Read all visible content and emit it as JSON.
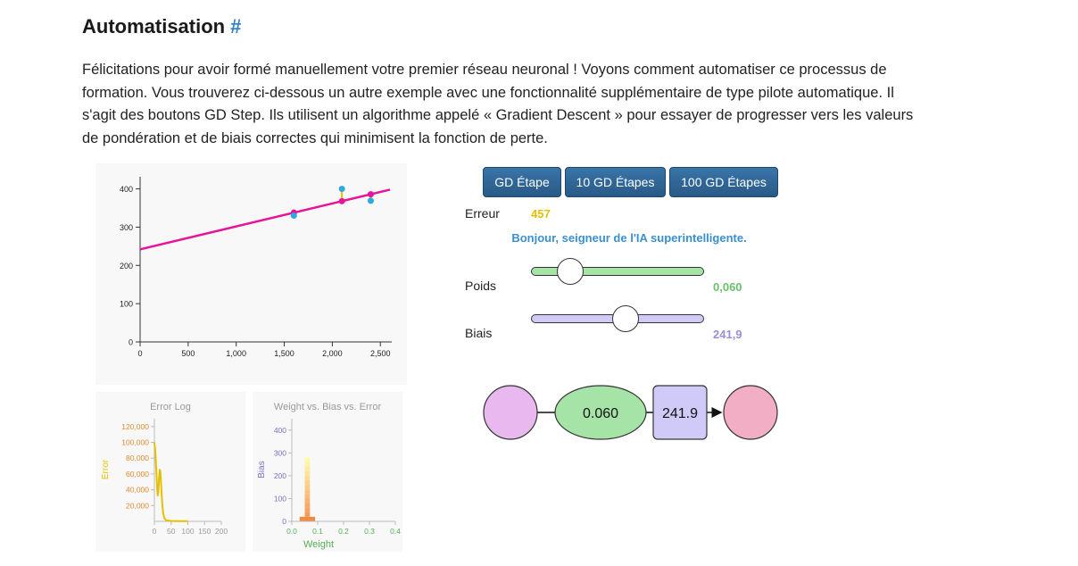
{
  "heading": {
    "title": "Automatisation",
    "anchor": "#"
  },
  "intro": "Félicitations pour avoir formé manuellement votre premier réseau neuronal ! Voyons comment automatiser ce processus de formation. Vous trouverez ci-dessous un autre exemple avec une fonctionnalité supplémentaire de type pilote automatique. Il s'agit des boutons GD Step. Ils utilisent un algorithme appelé « Gradient Descent » pour essayer de progresser vers les valeurs de pondération et de biais correctes qui minimisent la fonction de perte.",
  "controls": {
    "buttons": [
      "GD Étape",
      "10 GD Étapes",
      "100 GD Étapes"
    ],
    "error_label": "Erreur",
    "error_value": "457",
    "message": "Bonjour, seigneur de l'IA superintelligente.",
    "weight_label": "Poids",
    "weight_value": "0,060",
    "weight_slider_fraction": 0.2,
    "bias_label": "Biais",
    "bias_value": "241,9",
    "bias_slider_fraction": 0.52
  },
  "network": {
    "weight_node": "0.060",
    "bias_node": "241.9"
  },
  "colors": {
    "weight": "#a6e3a6",
    "bias": "#cfcaf7",
    "input": "#e8b8ef",
    "output": "#f2aec4",
    "line": "#e6149a",
    "point": "#2fa8e0",
    "error": "#e6c000",
    "button": "#2b5f8e"
  },
  "chart_data": [
    {
      "type": "scatter",
      "x": [
        1600,
        2100,
        2400
      ],
      "y": [
        330,
        400,
        369
      ],
      "fit_line": {
        "weight": 0.06,
        "bias": 241.9
      },
      "xlim": [
        0,
        2600
      ],
      "ylim": [
        0,
        420
      ],
      "x_ticks": [
        "0",
        "500",
        "1,000",
        "1,500",
        "2,000",
        "2,500"
      ],
      "y_ticks": [
        "0",
        "100",
        "200",
        "300",
        "400"
      ]
    },
    {
      "type": "line",
      "title": "Error Log",
      "ylabel": "Error",
      "x": [
        0,
        2,
        4,
        6,
        8,
        10,
        12,
        14,
        16,
        18,
        20,
        22,
        24,
        26,
        28,
        30,
        35,
        40,
        50,
        60,
        80,
        100
      ],
      "values": [
        100000,
        92000,
        80000,
        62000,
        45000,
        32000,
        38000,
        55000,
        66000,
        62000,
        48000,
        32000,
        20000,
        12000,
        7000,
        4000,
        1500,
        800,
        500,
        400,
        300,
        300
      ],
      "xlim": [
        0,
        200
      ],
      "ylim": [
        0,
        130000
      ],
      "x_ticks": [
        "0",
        "50",
        "100",
        "150",
        "200"
      ],
      "y_ticks": [
        "20,000",
        "40,000",
        "60,000",
        "80,000",
        "100,000",
        "120,000"
      ]
    },
    {
      "type": "heatmap",
      "title": "Weight vs. Bias vs. Error",
      "xlabel": "Weight",
      "ylabel": "Bias",
      "weight": 0.06,
      "bias_levels": [
        0,
        10,
        20,
        40,
        60,
        80,
        100,
        120,
        140,
        160,
        180,
        200,
        220,
        240,
        260
      ],
      "xlim": [
        0,
        0.4
      ],
      "ylim": [
        0,
        450
      ],
      "x_ticks": [
        "0.0",
        "0.1",
        "0.2",
        "0.3",
        "0.4"
      ],
      "y_ticks": [
        "0",
        "100",
        "200",
        "300",
        "400"
      ]
    }
  ]
}
